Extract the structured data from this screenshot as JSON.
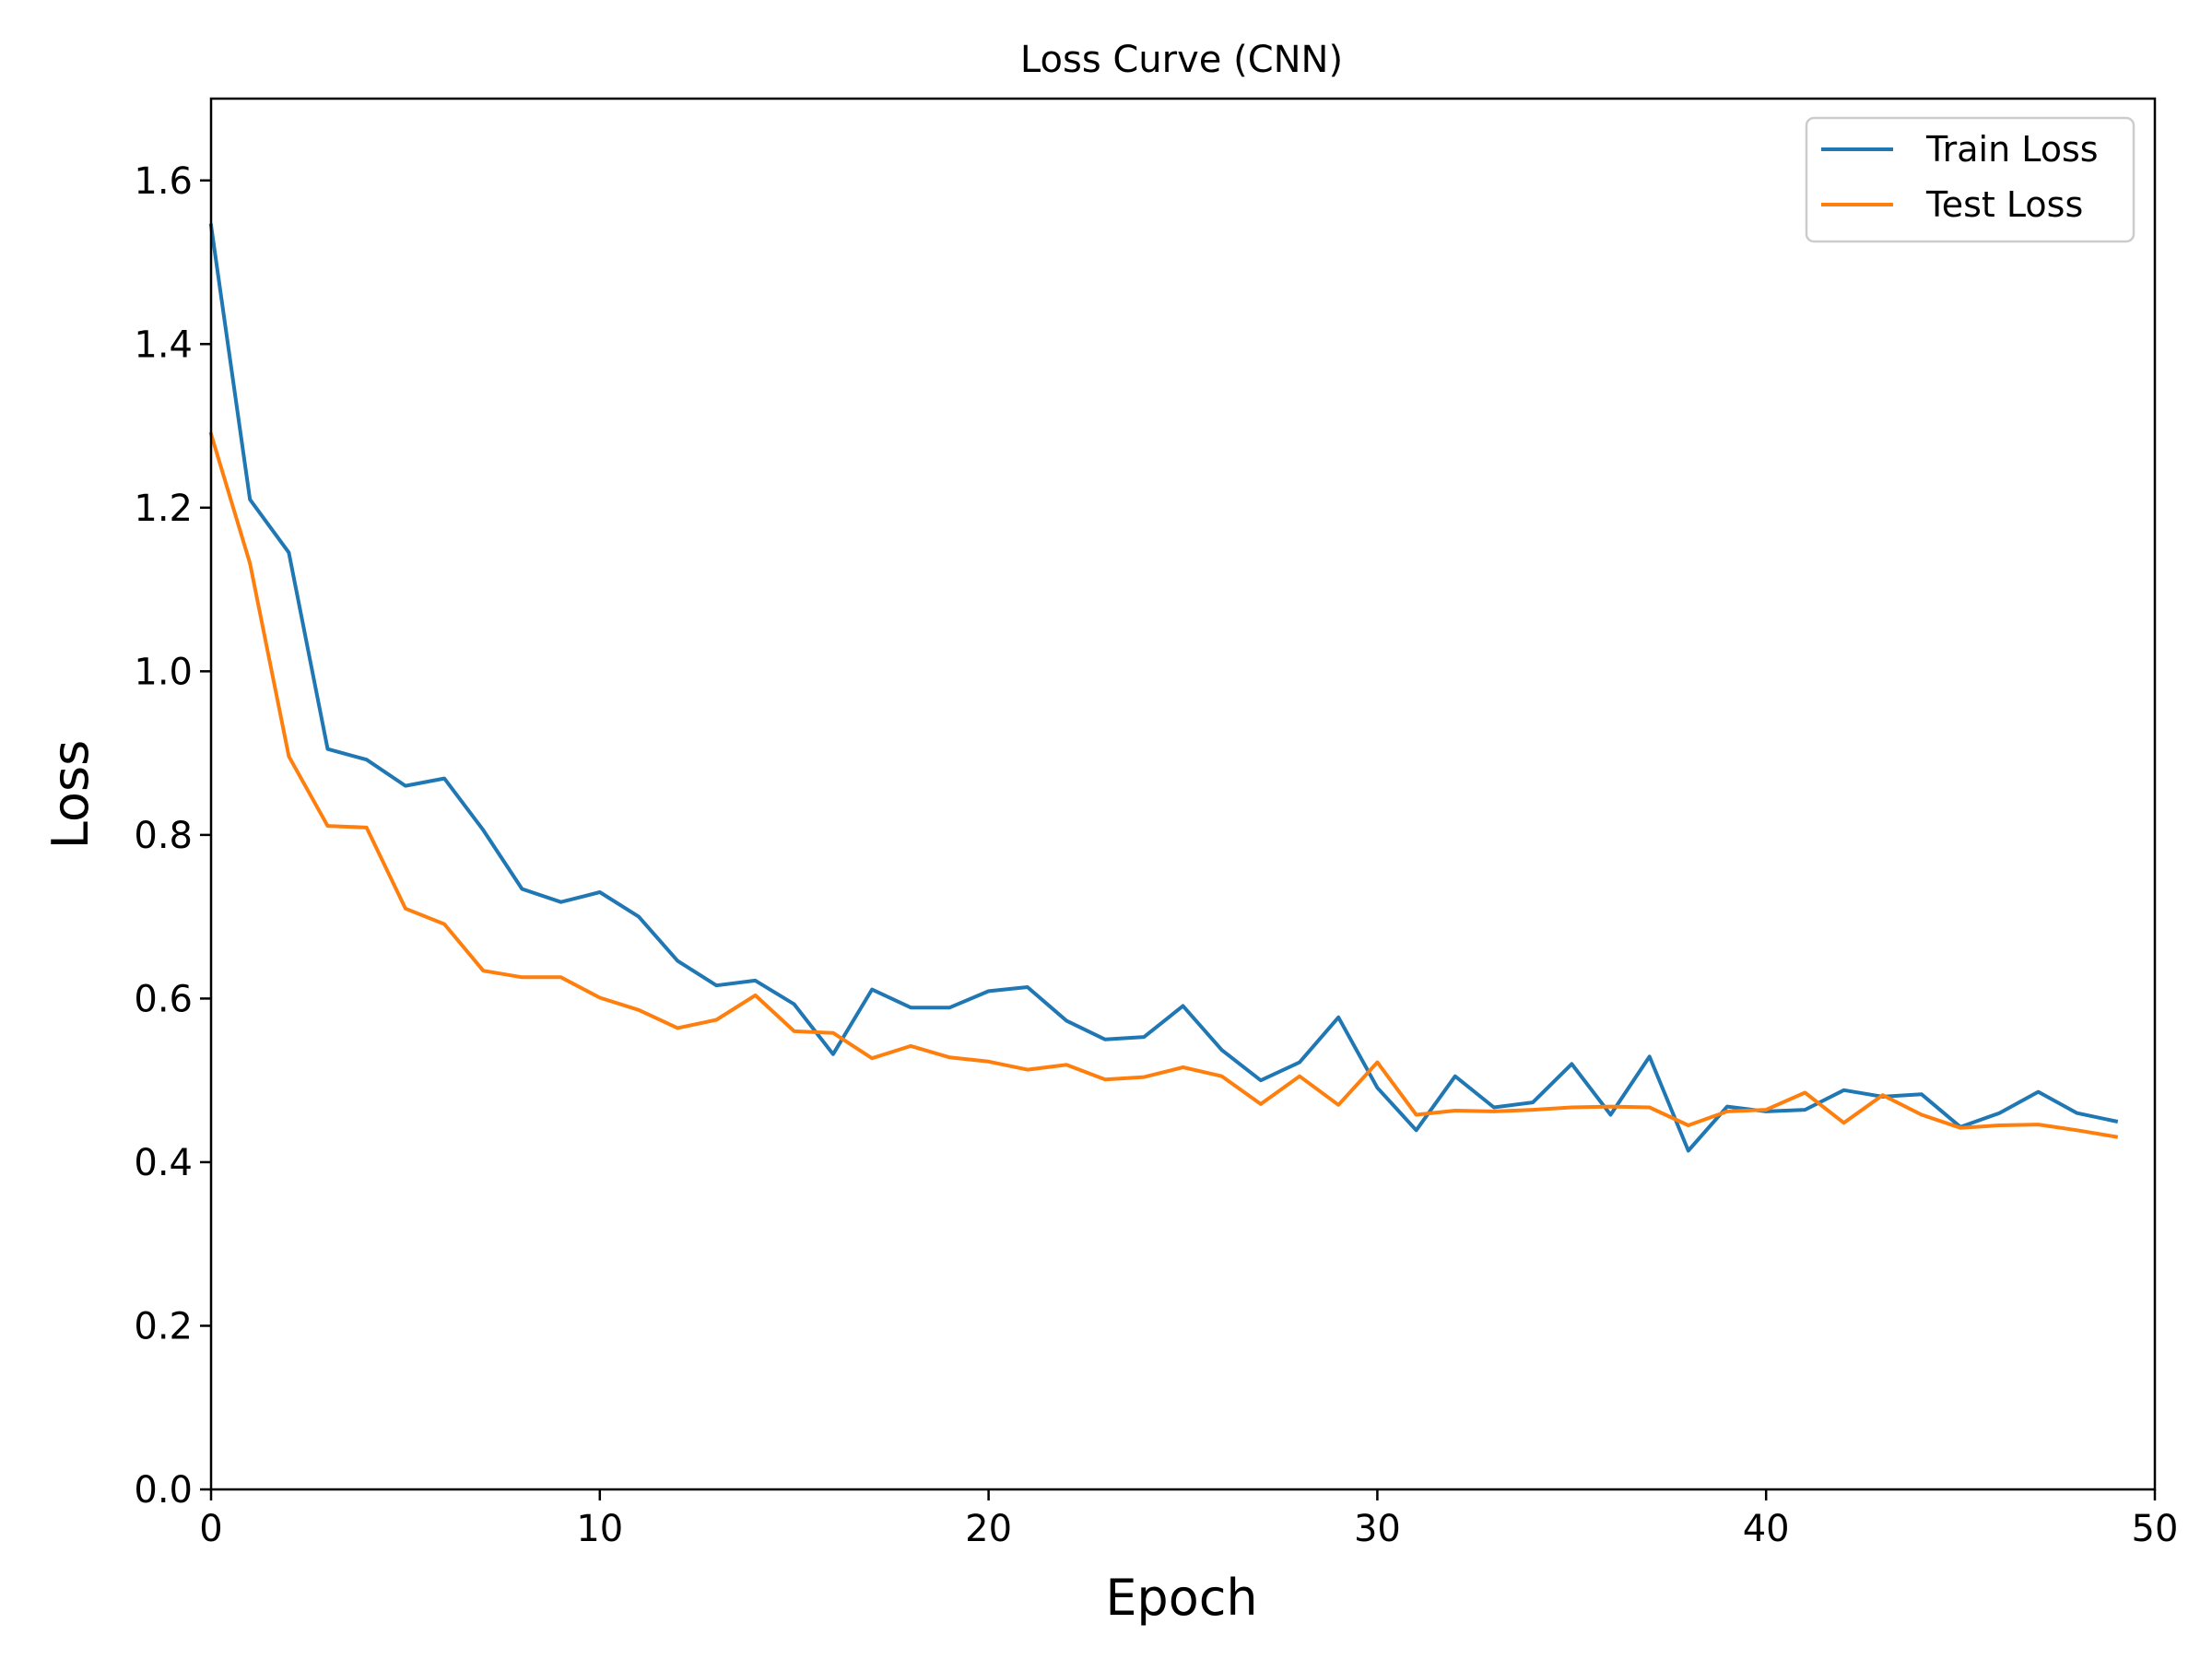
{
  "chart_data": {
    "type": "line",
    "title": "Loss Curve (CNN)",
    "xlabel": "Epoch",
    "ylabel": "Loss",
    "xlim": [
      0,
      50
    ],
    "ylim": [
      0,
      1.7
    ],
    "xticks": [
      0,
      10,
      20,
      30,
      40,
      50
    ],
    "xtick_labels": [
      "0",
      "10",
      "20",
      "30",
      "40",
      "50"
    ],
    "yticks": [
      0,
      0.2,
      0.4,
      0.6,
      0.8,
      1.0,
      1.2,
      1.4,
      1.6
    ],
    "ytick_labels": [
      "0.0",
      "0.2",
      "0.4",
      "0.6",
      "0.8",
      "1.0",
      "1.2",
      "1.4",
      "1.6"
    ],
    "grid": false,
    "legend_position": "top-right",
    "x": [
      0,
      1,
      2,
      3,
      4,
      5,
      6,
      7,
      8,
      9,
      10,
      11,
      12,
      13,
      14,
      15,
      16,
      17,
      18,
      19,
      20,
      21,
      22,
      23,
      24,
      25,
      26,
      27,
      28,
      29,
      30,
      31,
      32,
      33,
      34,
      35,
      36,
      37,
      38,
      39,
      40,
      41,
      42,
      43,
      44,
      45,
      46,
      47,
      48,
      49
    ],
    "series": [
      {
        "name": "Train Loss",
        "color": "#1f77b4",
        "values": [
          1.545,
          1.21,
          1.145,
          0.905,
          0.892,
          0.86,
          0.869,
          0.806,
          0.734,
          0.718,
          0.73,
          0.7,
          0.646,
          0.616,
          0.622,
          0.593,
          0.532,
          0.611,
          0.589,
          0.589,
          0.609,
          0.614,
          0.573,
          0.55,
          0.553,
          0.591,
          0.537,
          0.5,
          0.522,
          0.577,
          0.491,
          0.439,
          0.505,
          0.467,
          0.473,
          0.52,
          0.458,
          0.529,
          0.414,
          0.468,
          0.462,
          0.464,
          0.488,
          0.48,
          0.483,
          0.443,
          0.46,
          0.486,
          0.46,
          0.45
        ]
      },
      {
        "name": "Test Loss",
        "color": "#ff7f0e",
        "values": [
          1.29,
          1.132,
          0.896,
          0.811,
          0.809,
          0.71,
          0.691,
          0.634,
          0.626,
          0.626,
          0.601,
          0.586,
          0.564,
          0.574,
          0.604,
          0.56,
          0.558,
          0.527,
          0.542,
          0.528,
          0.523,
          0.513,
          0.519,
          0.501,
          0.504,
          0.516,
          0.505,
          0.471,
          0.505,
          0.47,
          0.522,
          0.458,
          0.463,
          0.462,
          0.464,
          0.467,
          0.468,
          0.467,
          0.445,
          0.462,
          0.464,
          0.485,
          0.448,
          0.482,
          0.458,
          0.442,
          0.445,
          0.446,
          0.439,
          0.431
        ]
      }
    ]
  }
}
